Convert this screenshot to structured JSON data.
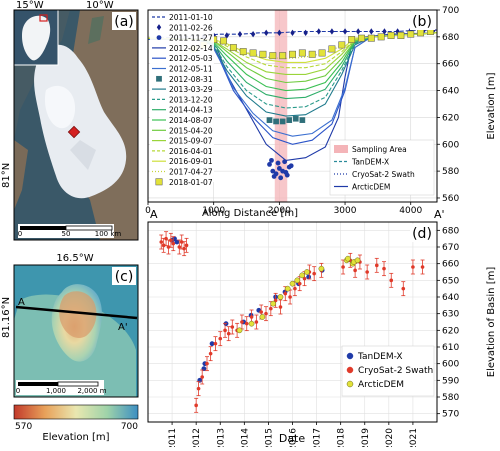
{
  "panel_a": {
    "label": "(a)",
    "lon_ticks": [
      "15°W",
      "10°W"
    ],
    "lat_tick": "81°N",
    "scale_labels": [
      "0",
      "50",
      "100 km"
    ],
    "colors": {
      "ocean": "#27405a",
      "ice": "#e9edf2",
      "land": "#7a6a58",
      "site": "#d42020"
    }
  },
  "panel_b": {
    "label": "(b)",
    "ylabel": "Elevation [m]",
    "xlabel": "Along Distance [m]",
    "end_left": "A",
    "end_right": "A'"
  },
  "panel_c": {
    "label": "(c)",
    "lon_tick": "16.5°W",
    "lat_tick": "81.16°N",
    "section_left": "A",
    "section_right": "A'",
    "scale_labels": [
      "0",
      "1,000",
      "2,000 m"
    ],
    "colorbar_min": "570",
    "colorbar_max": "700",
    "colorbar_label": "Elevation [m]"
  },
  "panel_d": {
    "label": "(d)",
    "ylabel": "Elevation of Basin [m]",
    "xlabel": "Date"
  },
  "chart_data": [
    {
      "type": "line",
      "panel": "b",
      "xlabel": "Along Distance [m]",
      "ylabel": "Elevation [m]",
      "xlim": [
        0,
        4400
      ],
      "ylim": [
        557,
        700
      ],
      "xticks": [
        0,
        1000,
        2000,
        3000,
        4000
      ],
      "yticks": [
        560,
        580,
        600,
        620,
        640,
        660,
        680,
        700
      ],
      "grid": true,
      "legend_position": "left",
      "legend2_position": "bottom-right",
      "sampling_area": [
        1930,
        2120
      ],
      "series": [
        {
          "name": "2011-01-10",
          "style": "dash",
          "color": "#1f3aa8",
          "x": [
            0,
            200,
            500,
            800,
            1100,
            1400,
            1700,
            2000,
            2300,
            2600,
            2900,
            3200,
            3500,
            3800,
            4100,
            4400
          ],
          "values": [
            679,
            679,
            680,
            681,
            682,
            682,
            683,
            683,
            684,
            684,
            684,
            684,
            684,
            684,
            685,
            685
          ]
        },
        {
          "name": "2011-02-26",
          "style": "diamond",
          "color": "#16208a",
          "x": [
            850,
            1000,
            1200,
            1400,
            1600,
            1800,
            2000,
            2200,
            2400,
            2600,
            2800,
            3000,
            3200,
            3400,
            3600,
            3800,
            4000,
            4200,
            4350
          ],
          "values": [
            680,
            681,
            681,
            682,
            682,
            683,
            683,
            683,
            683,
            684,
            684,
            684,
            684,
            684,
            684,
            684,
            685,
            685,
            685
          ]
        },
        {
          "name": "2011-11-27",
          "style": "circle",
          "color": "#1f3aa8",
          "x": [
            1850,
            1900,
            1950,
            2000,
            2050,
            2100,
            2150,
            1880,
            1980,
            2080,
            2180,
            1920,
            2020,
            2120
          ],
          "values": [
            585,
            580,
            578,
            582,
            580,
            579,
            583,
            588,
            586,
            587,
            584,
            576,
            575,
            577
          ]
        },
        {
          "name": "2012-02-14",
          "style": "solid",
          "color": "#1f3aa8",
          "x": [
            0,
            600,
            900,
            1050,
            1200,
            1500,
            1800,
            2100,
            2400,
            2700,
            2900,
            3000,
            3100,
            3300,
            3700,
            4400
          ],
          "values": [
            678,
            679,
            678,
            672,
            652,
            626,
            600,
            588,
            590,
            598,
            620,
            650,
            674,
            680,
            682,
            683
          ]
        },
        {
          "name": "2012-05-03",
          "style": "solid",
          "color": "#2b54c8",
          "x": [
            0,
            700,
            950,
            1100,
            1300,
            1600,
            1900,
            2200,
            2500,
            2800,
            3000,
            3150,
            3400,
            4400
          ],
          "values": [
            678,
            678,
            676,
            662,
            640,
            620,
            605,
            600,
            603,
            615,
            640,
            672,
            680,
            683
          ]
        },
        {
          "name": "2012-05-11",
          "style": "solid",
          "color": "#3b6fd0",
          "x": [
            0,
            700,
            950,
            1100,
            1300,
            1600,
            1900,
            2200,
            2500,
            2800,
            3000,
            3150,
            3400,
            4400
          ],
          "values": [
            678,
            678,
            676,
            663,
            642,
            623,
            610,
            606,
            608,
            618,
            642,
            672,
            680,
            683
          ]
        },
        {
          "name": "2012-08-31",
          "style": "square",
          "color": "#2f6f7a",
          "x": [
            1850,
            1950,
            2050,
            2150,
            2250,
            2350
          ],
          "values": [
            618,
            617,
            617,
            618,
            619,
            618
          ]
        },
        {
          "name": "2013-03-29",
          "style": "solid",
          "color": "#1f7a8c",
          "x": [
            0,
            800,
            1000,
            1200,
            1500,
            1800,
            2100,
            2400,
            2700,
            2950,
            3150,
            3400,
            4400
          ],
          "values": [
            679,
            678,
            673,
            655,
            636,
            624,
            621,
            622,
            630,
            652,
            674,
            680,
            683
          ]
        },
        {
          "name": "2013-12-20",
          "style": "dash",
          "color": "#2a9a8a",
          "x": [
            0,
            800,
            1000,
            1200,
            1500,
            1800,
            2100,
            2400,
            2700,
            2950,
            3150,
            3400,
            4400
          ],
          "values": [
            679,
            678,
            674,
            658,
            640,
            630,
            627,
            628,
            635,
            655,
            675,
            680,
            683
          ]
        },
        {
          "name": "2014-04-13",
          "style": "solid",
          "color": "#2fae6a",
          "x": [
            0,
            800,
            1000,
            1200,
            1500,
            1800,
            2100,
            2400,
            2700,
            2950,
            3150,
            3400,
            4400
          ],
          "values": [
            679,
            678,
            675,
            662,
            646,
            637,
            634,
            635,
            641,
            658,
            676,
            680,
            683
          ]
        },
        {
          "name": "2014-08-07",
          "style": "solid",
          "color": "#3cc055",
          "x": [
            0,
            800,
            1000,
            1200,
            1500,
            1800,
            2100,
            2400,
            2700,
            2950,
            3150,
            3400,
            4400
          ],
          "values": [
            679,
            678,
            676,
            666,
            652,
            643,
            640,
            641,
            646,
            661,
            677,
            680,
            683
          ]
        },
        {
          "name": "2015-04-20",
          "style": "solid",
          "color": "#6fcb3f",
          "x": [
            0,
            800,
            1000,
            1200,
            1500,
            1800,
            2100,
            2400,
            2700,
            2950,
            3150,
            3400,
            4400
          ],
          "values": [
            679,
            678,
            677,
            669,
            657,
            649,
            646,
            647,
            651,
            664,
            677,
            680,
            683
          ]
        },
        {
          "name": "2015-09-07",
          "style": "solid",
          "color": "#9ad43a",
          "x": [
            0,
            800,
            1000,
            1200,
            1500,
            1800,
            2100,
            2400,
            2700,
            2950,
            3150,
            3400,
            4400
          ],
          "values": [
            679,
            678,
            677,
            671,
            661,
            654,
            652,
            652,
            656,
            667,
            678,
            680,
            683
          ]
        },
        {
          "name": "2016-04-01",
          "style": "dash",
          "color": "#b7d83a",
          "x": [
            0,
            800,
            1000,
            1200,
            1500,
            1800,
            2100,
            2400,
            2700,
            2950,
            3150,
            3400,
            4400
          ],
          "values": [
            679,
            678,
            678,
            673,
            665,
            659,
            657,
            657,
            660,
            669,
            678,
            680,
            683
          ]
        },
        {
          "name": "2016-09-01",
          "style": "solid",
          "color": "#cfe03c",
          "x": [
            0,
            800,
            1000,
            1200,
            1500,
            1800,
            2100,
            2400,
            2700,
            2950,
            3150,
            3400,
            4400
          ],
          "values": [
            679,
            678,
            678,
            675,
            668,
            663,
            661,
            661,
            664,
            671,
            679,
            680,
            683
          ]
        },
        {
          "name": "2017-04-27",
          "style": "dot",
          "color": "#c7d63c",
          "x": [
            1000,
            1200,
            1400,
            1600,
            1800,
            2000,
            2200,
            2400,
            2600,
            2800,
            3000
          ],
          "values": [
            677,
            674,
            670,
            667,
            665,
            664,
            664,
            665,
            667,
            670,
            675
          ]
        },
        {
          "name": "2018-01-07",
          "style": "square",
          "color": "#e2e23a",
          "x": [
            700,
            850,
            1000,
            1150,
            1300,
            1450,
            1600,
            1750,
            1900,
            2050,
            2200,
            2350,
            2500,
            2650,
            2800,
            2950,
            3100,
            3250,
            3400,
            3550,
            3700,
            3850,
            4000,
            4150,
            4300
          ],
          "values": [
            671,
            674,
            678,
            677,
            672,
            669,
            668,
            667,
            666,
            666,
            667,
            668,
            667,
            668,
            671,
            674,
            678,
            679,
            679,
            680,
            681,
            681,
            682,
            683,
            684
          ]
        }
      ],
      "legend2": [
        {
          "name": "Sampling Area",
          "style": "patch",
          "color": "#f4b4b8"
        },
        {
          "name": "TanDEM-X",
          "style": "dash",
          "color": "#2a8a9a"
        },
        {
          "name": "CryoSat-2 Swath",
          "style": "dot",
          "color": "#1f3aa8"
        },
        {
          "name": "ArcticDEM",
          "style": "solid",
          "color": "#1f3aa8"
        }
      ]
    },
    {
      "type": "scatter",
      "panel": "d",
      "xlabel": "Date",
      "ylabel": "Elevation of Basin [m]",
      "xlim": [
        2010.0,
        2022.0
      ],
      "ylim": [
        565,
        685
      ],
      "xticks": [
        2011,
        2012,
        2013,
        2014,
        2015,
        2016,
        2017,
        2018,
        2019,
        2020,
        2021
      ],
      "yticks": [
        570,
        580,
        590,
        600,
        610,
        620,
        630,
        640,
        650,
        660,
        670,
        680
      ],
      "grid": true,
      "legend_position": "bottom-right",
      "series": [
        {
          "name": "TanDEM-X",
          "color": "#1f3aa8",
          "x": [
            2011.0,
            2011.1,
            2011.2,
            2012.15,
            2012.32,
            2012.36,
            2012.66,
            2013.24,
            2013.97,
            2014.28,
            2014.6,
            2015.3,
            2015.69,
            2016.25,
            2016.67,
            2017.23
          ],
          "values": [
            674,
            675,
            673,
            590,
            597,
            600,
            612,
            624,
            625,
            629,
            632,
            640,
            643,
            648,
            652,
            656
          ]
        },
        {
          "name": "CryoSat-2 Swath",
          "color": "#e03a2a",
          "x": [
            2010.55,
            2010.65,
            2010.75,
            2010.85,
            2010.95,
            2011.05,
            2011.3,
            2011.4,
            2011.5,
            2011.6,
            2012.0,
            2012.1,
            2012.25,
            2012.45,
            2012.6,
            2012.8,
            2013.0,
            2013.2,
            2013.35,
            2013.5,
            2013.7,
            2013.9,
            2014.1,
            2014.3,
            2014.5,
            2014.7,
            2014.9,
            2015.1,
            2015.3,
            2015.5,
            2015.7,
            2015.9,
            2016.1,
            2016.3,
            2016.5,
            2016.7,
            2016.9,
            2017.2,
            2018.1,
            2018.4,
            2018.6,
            2018.8,
            2019.1,
            2019.5,
            2019.8,
            2020.1,
            2020.6,
            2021.0,
            2021.4
          ],
          "values": [
            673,
            671,
            675,
            670,
            674,
            672,
            670,
            673,
            669,
            671,
            575,
            585,
            592,
            600,
            606,
            612,
            615,
            620,
            618,
            622,
            620,
            625,
            624,
            628,
            625,
            631,
            630,
            633,
            638,
            634,
            642,
            640,
            645,
            648,
            651,
            655,
            654,
            656,
            658,
            662,
            656,
            661,
            655,
            659,
            657,
            650,
            645,
            658,
            658
          ]
        },
        {
          "name": "ArcticDEM",
          "color": "#e2e23a",
          "x": [
            2013.8,
            2014.3,
            2014.75,
            2015.2,
            2015.5,
            2015.8,
            2016.0,
            2016.2,
            2016.4,
            2016.6,
            2017.2,
            2018.25,
            2018.3,
            2018.5,
            2018.55,
            2018.7
          ],
          "values": [
            620,
            624,
            628,
            636,
            640,
            645,
            648,
            650,
            653,
            655,
            657,
            662,
            663,
            660,
            661,
            662
          ]
        }
      ]
    }
  ]
}
